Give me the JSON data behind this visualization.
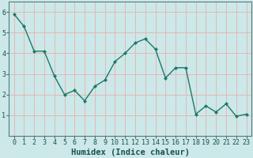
{
  "x": [
    0,
    1,
    2,
    3,
    4,
    5,
    6,
    7,
    8,
    9,
    10,
    11,
    12,
    13,
    14,
    15,
    16,
    17,
    18,
    19,
    20,
    21,
    22,
    23
  ],
  "y": [
    5.9,
    5.3,
    4.1,
    4.1,
    2.9,
    2.0,
    2.2,
    1.7,
    2.4,
    2.7,
    3.6,
    4.0,
    4.5,
    4.7,
    4.2,
    2.8,
    3.3,
    3.3,
    1.05,
    1.45,
    1.15,
    1.55,
    0.95,
    1.05
  ],
  "line_color": "#1a7a6a",
  "marker": "D",
  "marker_size": 2.0,
  "line_width": 1.0,
  "xlabel": "Humidex (Indice chaleur)",
  "ylim": [
    0,
    6.5
  ],
  "xlim": [
    -0.5,
    23.5
  ],
  "yticks": [
    1,
    2,
    3,
    4,
    5,
    6
  ],
  "xticks": [
    0,
    1,
    2,
    3,
    4,
    5,
    6,
    7,
    8,
    9,
    10,
    11,
    12,
    13,
    14,
    15,
    16,
    17,
    18,
    19,
    20,
    21,
    22,
    23
  ],
  "bg_color": "#cce8e8",
  "grid_color": "#e8b0b0",
  "tick_label_color": "#1a5050",
  "axis_color": "#5a7a7a",
  "xlabel_fontsize": 7.5,
  "tick_fontsize": 6.0
}
